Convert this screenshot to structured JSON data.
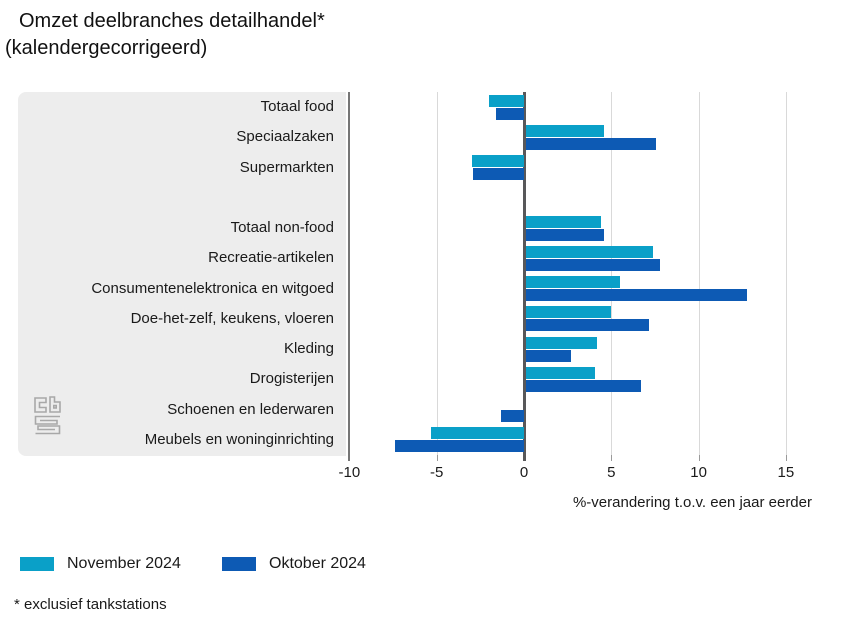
{
  "title": {
    "line1": "Omzet deelbranches detailhandel*",
    "line2": "(kalendergecorrigeerd)"
  },
  "footnote": "* exclusief tankstations",
  "chart_data": {
    "type": "bar",
    "orientation": "horizontal",
    "title": "Omzet deelbranches detailhandel* (kalendergecorrigeerd)",
    "xlabel": "%-verandering t.o.v. een jaar eerder",
    "ylabel": "",
    "x_ticks": [
      -10,
      -5,
      0,
      5,
      10,
      15
    ],
    "xlim": [
      -10.3,
      17.0
    ],
    "grid": true,
    "zero_line": true,
    "legend_position": "bottom-left",
    "series": [
      {
        "name": "November 2024",
        "key": "november",
        "color": "#0aa0c8"
      },
      {
        "name": "Oktober 2024",
        "key": "oktober",
        "color": "#0d5ab4"
      }
    ],
    "groups": [
      {
        "name": "food",
        "items": [
          {
            "label": "Totaal food",
            "november": -2.0,
            "oktober": -1.6
          },
          {
            "label": "Speciaalzaken",
            "november": 4.5,
            "oktober": 7.5
          },
          {
            "label": "Supermarkten",
            "november": -3.0,
            "oktober": -2.9
          }
        ]
      },
      {
        "name": "non-food",
        "items": [
          {
            "label": "Totaal non-food",
            "november": 4.3,
            "oktober": 4.5
          },
          {
            "label": "Recreatie-artikelen",
            "november": 7.3,
            "oktober": 7.7
          },
          {
            "label": "Consumentenelektronica en witgoed",
            "november": 5.4,
            "oktober": 12.7
          },
          {
            "label": "Doe-het-zelf, keukens, vloeren",
            "november": 4.9,
            "oktober": 7.1
          },
          {
            "label": "Kleding",
            "november": 4.1,
            "oktober": 2.6
          },
          {
            "label": "Drogisterijen",
            "november": 4.0,
            "oktober": 6.6
          },
          {
            "label": "Schoenen en lederwaren",
            "november": 0.0,
            "oktober": -1.3
          },
          {
            "label": "Meubels en woninginrichting",
            "november": -5.3,
            "oktober": -7.4
          }
        ]
      }
    ]
  }
}
